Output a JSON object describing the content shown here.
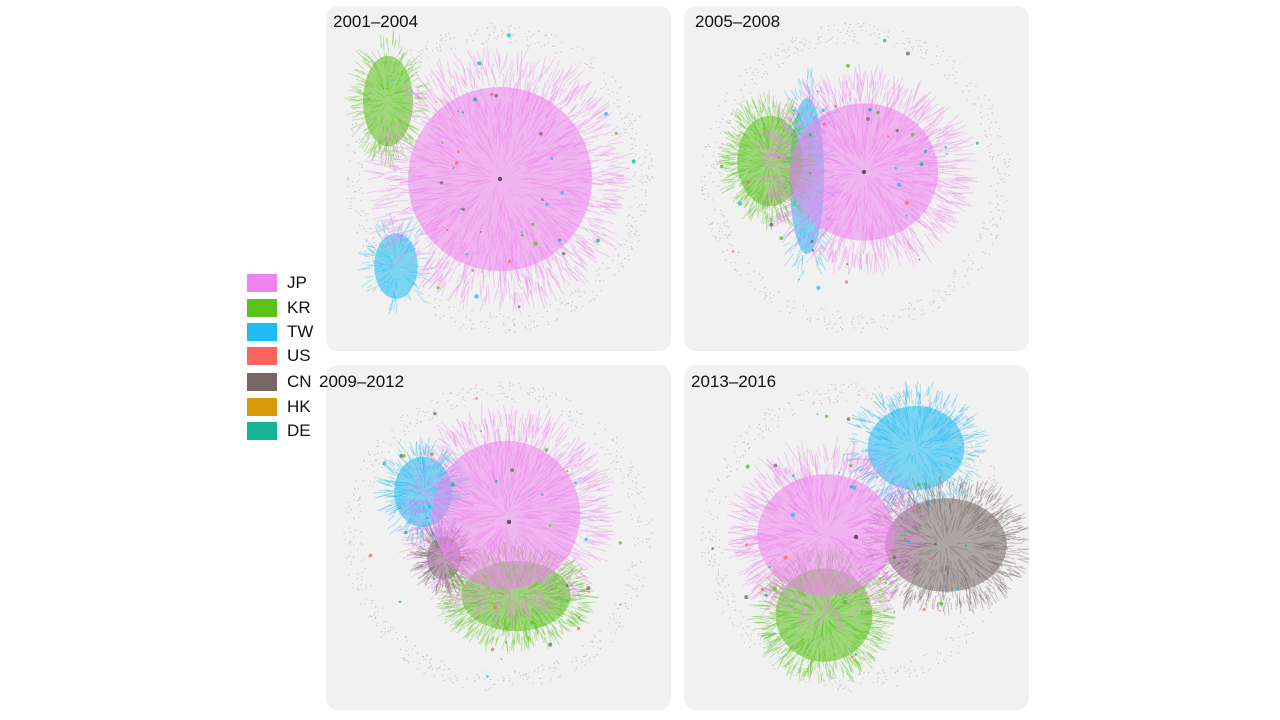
{
  "legend": {
    "items": [
      {
        "code": "JP",
        "color": "#ee82ee"
      },
      {
        "code": "KR",
        "color": "#5ac21a"
      },
      {
        "code": "TW",
        "color": "#1ebcf2"
      },
      {
        "code": "US",
        "color": "#ff6560"
      },
      {
        "code": "CN",
        "color": "#776868"
      },
      {
        "code": "HK",
        "color": "#d99a0a"
      },
      {
        "code": "DE",
        "color": "#14b495"
      }
    ]
  },
  "panels": [
    {
      "title": "2001–2004",
      "dominant_clusters": [
        "JP",
        "KR",
        "TW"
      ]
    },
    {
      "title": "2005–2008",
      "dominant_clusters": [
        "JP",
        "KR",
        "TW"
      ]
    },
    {
      "title": "2009–2012",
      "dominant_clusters": [
        "JP",
        "KR",
        "TW",
        "CN"
      ]
    },
    {
      "title": "2013–2016",
      "dominant_clusters": [
        "JP",
        "TW",
        "CN",
        "KR"
      ]
    }
  ]
}
